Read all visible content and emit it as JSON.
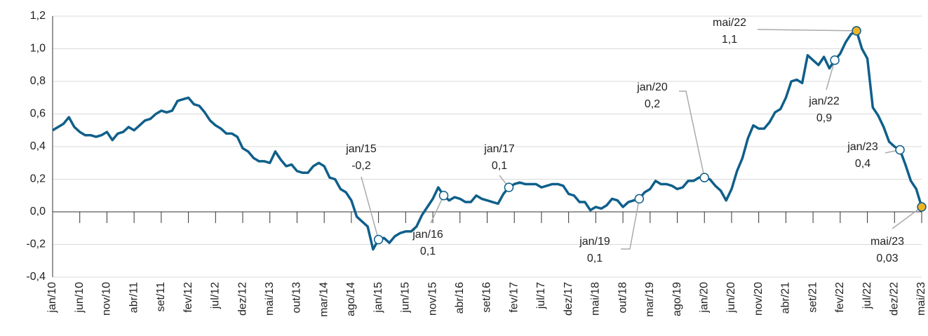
{
  "chart_data": {
    "type": "line",
    "categories": [
      "jan/10",
      null,
      null,
      null,
      null,
      "jun/10",
      null,
      null,
      null,
      null,
      "nov/10",
      null,
      null,
      null,
      null,
      "abr/11",
      null,
      null,
      null,
      null,
      "set/11",
      null,
      null,
      null,
      null,
      "fev/12",
      null,
      null,
      null,
      null,
      "jul/12",
      null,
      null,
      null,
      null,
      "dez/12",
      null,
      null,
      null,
      null,
      "mai/13",
      null,
      null,
      null,
      null,
      "out/13",
      null,
      null,
      null,
      null,
      "mar/14",
      null,
      null,
      null,
      null,
      "ago/14",
      null,
      null,
      null,
      null,
      "jan/15",
      null,
      null,
      null,
      null,
      "jun/15",
      null,
      null,
      null,
      null,
      "nov/15",
      null,
      null,
      null,
      null,
      "abr/16",
      null,
      null,
      null,
      null,
      "set/16",
      null,
      null,
      null,
      null,
      "fev/17",
      null,
      null,
      null,
      null,
      "jul/17",
      null,
      null,
      null,
      null,
      "dez/17",
      null,
      null,
      null,
      null,
      "mai/18",
      null,
      null,
      null,
      null,
      "out/18",
      null,
      null,
      null,
      null,
      "mar/19",
      null,
      null,
      null,
      null,
      "ago/19",
      null,
      null,
      null,
      null,
      "jan/20",
      null,
      null,
      null,
      null,
      "jun/20",
      null,
      null,
      null,
      null,
      "nov/20",
      null,
      null,
      null,
      null,
      "abr/21",
      null,
      null,
      null,
      null,
      "set/21",
      null,
      null,
      null,
      null,
      "fev/22",
      null,
      null,
      null,
      null,
      "jul/22",
      null,
      null,
      null,
      null,
      "dez/22",
      null,
      null,
      null,
      null,
      "mai/23"
    ],
    "series": [
      {
        "color": "#0f5f8a",
        "values": [
          0.5,
          0.52,
          0.54,
          0.58,
          0.52,
          0.49,
          0.47,
          0.47,
          0.46,
          0.47,
          0.49,
          0.44,
          0.48,
          0.49,
          0.52,
          0.5,
          0.53,
          0.56,
          0.57,
          0.6,
          0.62,
          0.61,
          0.62,
          0.68,
          0.69,
          0.7,
          0.66,
          0.65,
          0.61,
          0.56,
          0.53,
          0.51,
          0.48,
          0.48,
          0.46,
          0.39,
          0.37,
          0.33,
          0.31,
          0.31,
          0.3,
          0.37,
          0.32,
          0.28,
          0.29,
          0.25,
          0.24,
          0.24,
          0.28,
          0.3,
          0.28,
          0.21,
          0.2,
          0.14,
          0.12,
          0.07,
          -0.03,
          -0.06,
          -0.09,
          -0.23,
          -0.17,
          -0.16,
          -0.19,
          -0.15,
          -0.13,
          -0.12,
          -0.12,
          -0.09,
          -0.02,
          0.03,
          0.08,
          0.15,
          0.1,
          0.07,
          0.09,
          0.08,
          0.06,
          0.06,
          0.1,
          0.08,
          0.07,
          0.06,
          0.05,
          0.11,
          0.15,
          0.17,
          0.18,
          0.17,
          0.17,
          0.17,
          0.15,
          0.16,
          0.17,
          0.17,
          0.16,
          0.11,
          0.1,
          0.06,
          0.06,
          0.01,
          0.03,
          0.02,
          0.04,
          0.08,
          0.07,
          0.03,
          0.06,
          0.07,
          0.08,
          0.12,
          0.14,
          0.19,
          0.17,
          0.17,
          0.16,
          0.14,
          0.15,
          0.19,
          0.19,
          0.21,
          0.21,
          0.2,
          0.16,
          0.13,
          0.07,
          0.14,
          0.25,
          0.33,
          0.45,
          0.53,
          0.51,
          0.51,
          0.55,
          0.61,
          0.63,
          0.7,
          0.8,
          0.81,
          0.79,
          0.96,
          0.93,
          0.9,
          0.95,
          0.88,
          0.93,
          0.97,
          1.04,
          1.09,
          1.11,
          1.0,
          0.94,
          0.64,
          0.59,
          0.52,
          0.43,
          0.4,
          0.38,
          0.29,
          0.19,
          0.14,
          0.03
        ]
      }
    ],
    "ylim": [
      -0.4,
      1.2
    ],
    "yticks": [
      {
        "value": -0.4,
        "label": "-0,4"
      },
      {
        "value": -0.2,
        "label": "-0,2"
      },
      {
        "value": 0,
        "label": "0,0"
      },
      {
        "value": 0.2,
        "label": "0,2"
      },
      {
        "value": 0.4,
        "label": "0,4"
      },
      {
        "value": 0.6,
        "label": "0,6"
      },
      {
        "value": 0.8,
        "label": "0,8"
      },
      {
        "value": 1.0,
        "label": "1,0"
      },
      {
        "value": 1.2,
        "label": "1,2"
      }
    ],
    "grid": true,
    "annotations": [
      {
        "x": "jan/15",
        "value": -0.17,
        "label": "-0,2"
      },
      {
        "x": "jan/16",
        "value": 0.1,
        "label": "0,1"
      },
      {
        "x": "jan/17",
        "value": 0.15,
        "label": "0,1"
      },
      {
        "x": "jan/19",
        "value": 0.08,
        "label": "0,1"
      },
      {
        "x": "jan/20",
        "value": 0.21,
        "label": "0,2"
      },
      {
        "x": "mai/22",
        "value": 1.11,
        "label": "1,1",
        "color": "#f0b323"
      },
      {
        "x": "jan/22",
        "value": 0.93,
        "label": "0,9"
      },
      {
        "x": "jan/23",
        "value": 0.38,
        "label": "0,4"
      },
      {
        "x": "mai/23",
        "value": 0.03,
        "label": "0,03",
        "color": "#f0b323"
      }
    ]
  }
}
